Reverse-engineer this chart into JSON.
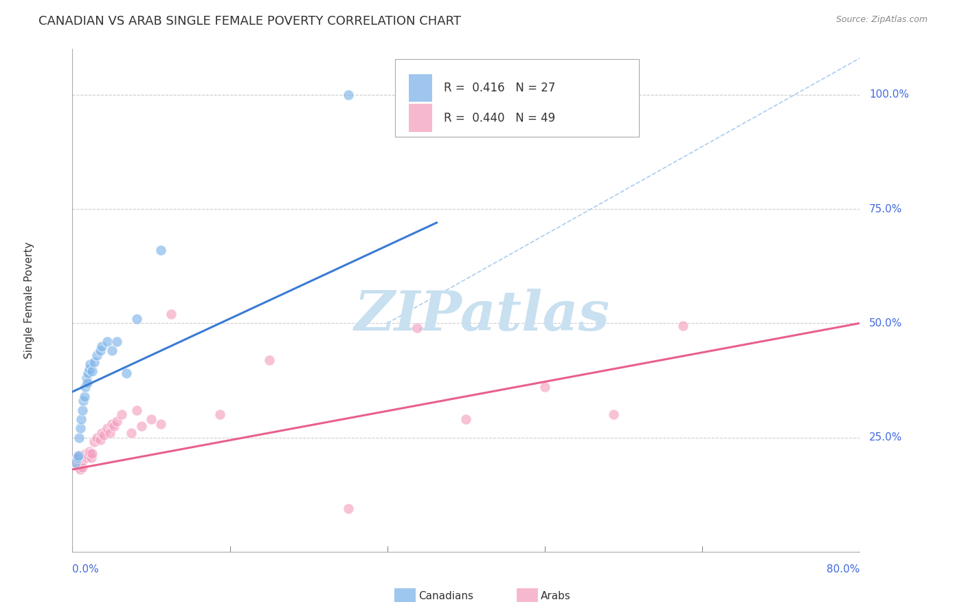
{
  "title": "CANADIAN VS ARAB SINGLE FEMALE POVERTY CORRELATION CHART",
  "source": "Source: ZipAtlas.com",
  "ylabel": "Single Female Poverty",
  "right_ytick_labels": [
    "100.0%",
    "75.0%",
    "50.0%",
    "25.0%"
  ],
  "right_ytick_values": [
    1.0,
    0.75,
    0.5,
    0.25
  ],
  "legend_canadian": "R =  0.416   N = 27",
  "legend_arab": "R =  0.440   N = 49",
  "canadian_color": "#7EB4EA",
  "arab_color": "#F4A0C0",
  "canadian_line_color": "#3A7BD5",
  "arab_line_color": "#E8608A",
  "ref_line_color": "#AACCEE",
  "grid_color": "#CCCCCC",
  "watermark_color": "#C8E0F0",
  "xlim": [
    0.0,
    0.8
  ],
  "ylim": [
    0.0,
    1.1
  ],
  "axis_label_color": "#4169E1",
  "canadians_x": [
    0.003,
    0.005,
    0.006,
    0.007,
    0.008,
    0.009,
    0.01,
    0.011,
    0.012,
    0.013,
    0.014,
    0.015,
    0.016,
    0.017,
    0.018,
    0.02,
    0.022,
    0.025,
    0.028,
    0.03,
    0.035,
    0.04,
    0.045,
    0.055,
    0.065,
    0.09,
    0.28
  ],
  "canadians_y": [
    0.195,
    0.205,
    0.21,
    0.25,
    0.27,
    0.29,
    0.31,
    0.33,
    0.34,
    0.36,
    0.38,
    0.37,
    0.39,
    0.4,
    0.41,
    0.395,
    0.415,
    0.43,
    0.44,
    0.45,
    0.46,
    0.44,
    0.46,
    0.39,
    0.51,
    0.66,
    1.0
  ],
  "arabs_x": [
    0.002,
    0.003,
    0.004,
    0.005,
    0.005,
    0.006,
    0.006,
    0.007,
    0.007,
    0.008,
    0.008,
    0.009,
    0.01,
    0.01,
    0.011,
    0.012,
    0.013,
    0.014,
    0.015,
    0.016,
    0.017,
    0.018,
    0.019,
    0.02,
    0.022,
    0.025,
    0.028,
    0.03,
    0.032,
    0.035,
    0.038,
    0.04,
    0.042,
    0.045,
    0.05,
    0.06,
    0.065,
    0.07,
    0.08,
    0.09,
    0.1,
    0.15,
    0.2,
    0.28,
    0.35,
    0.4,
    0.48,
    0.55,
    0.62
  ],
  "arabs_y": [
    0.195,
    0.2,
    0.195,
    0.19,
    0.205,
    0.185,
    0.2,
    0.195,
    0.21,
    0.18,
    0.2,
    0.195,
    0.185,
    0.2,
    0.205,
    0.21,
    0.215,
    0.205,
    0.215,
    0.21,
    0.22,
    0.215,
    0.205,
    0.215,
    0.24,
    0.25,
    0.245,
    0.26,
    0.255,
    0.27,
    0.26,
    0.28,
    0.275,
    0.285,
    0.3,
    0.26,
    0.31,
    0.275,
    0.29,
    0.28,
    0.52,
    0.3,
    0.42,
    0.095,
    0.49,
    0.29,
    0.36,
    0.3,
    0.495
  ],
  "can_line_x0": 0.0,
  "can_line_x1": 0.37,
  "can_line_y0": 0.35,
  "can_line_y1": 0.72,
  "arab_line_x0": 0.0,
  "arab_line_x1": 0.8,
  "arab_line_y0": 0.18,
  "arab_line_y1": 0.5,
  "ref_line_x0": 0.32,
  "ref_line_x1": 0.8,
  "ref_line_y0": 0.5,
  "ref_line_y1": 1.08,
  "fig_bg": "#FFFFFF",
  "title_fontsize": 13
}
